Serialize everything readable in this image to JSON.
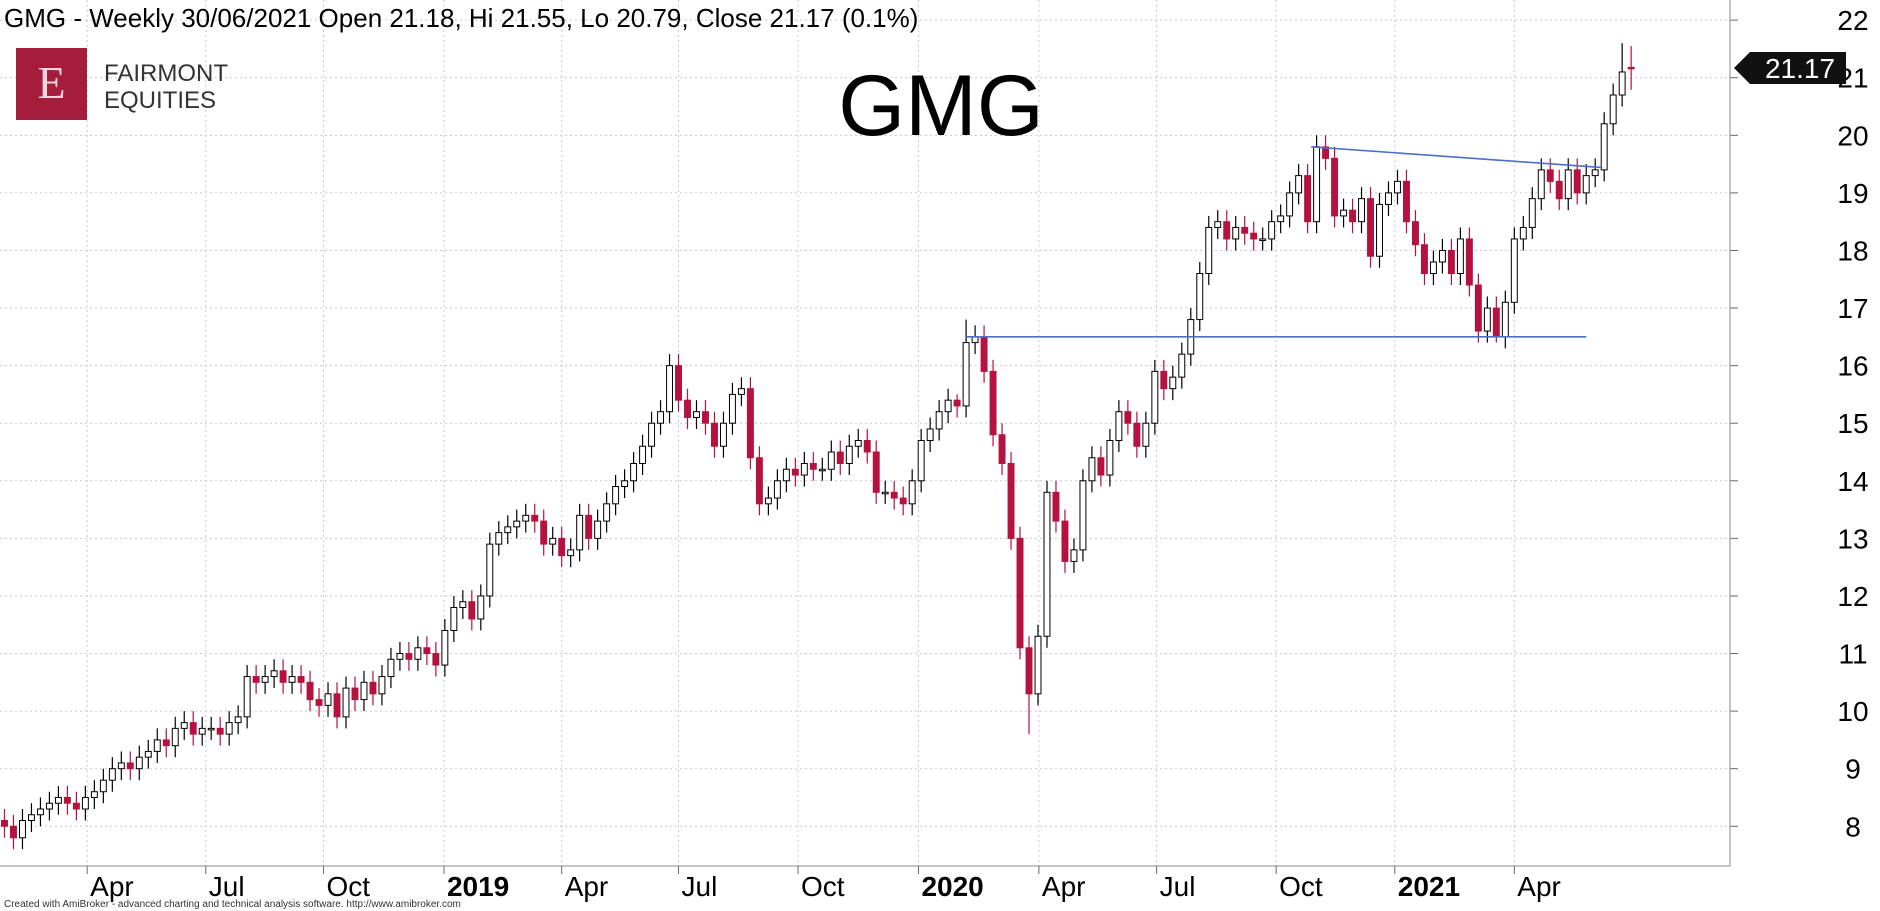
{
  "chart_data": {
    "type": "candlestick",
    "title": "GMG - Weekly 30/06/2021 Open 21.18, Hi 21.55, Lo 20.79, Close 21.17 (0.1%)",
    "watermark": "GMG",
    "open": [
      8.1,
      8.0,
      7.8,
      8.1,
      8.2,
      8.3,
      8.4,
      8.5,
      8.4,
      8.3,
      8.5,
      8.6,
      8.8,
      9.0,
      9.1,
      9.0,
      9.2,
      9.3,
      9.5,
      9.4,
      9.7,
      9.8,
      9.6,
      9.7,
      9.7,
      9.6,
      9.8,
      9.9,
      10.6,
      10.5,
      10.6,
      10.7,
      10.5,
      10.6,
      10.5,
      10.2,
      10.1,
      10.3,
      9.9,
      10.4,
      10.2,
      10.5,
      10.3,
      10.6,
      10.9,
      11.0,
      10.9,
      11.1,
      11.0,
      10.8,
      11.4,
      11.8,
      11.9,
      11.6,
      12.0,
      12.9,
      13.1,
      13.2,
      13.3,
      13.4,
      13.3,
      12.9,
      13.0,
      12.7,
      12.8,
      13.4,
      13.0,
      13.3,
      13.6,
      13.9,
      14.0,
      14.3,
      14.6,
      15.0,
      15.2,
      16.0,
      15.4,
      15.1,
      15.2,
      15.0,
      14.6,
      15.0,
      15.5,
      15.6,
      14.4,
      13.6,
      13.7,
      14.0,
      14.2,
      14.1,
      14.3,
      14.2,
      14.2,
      14.5,
      14.3,
      14.6,
      14.7,
      14.5,
      13.8,
      13.8,
      13.7,
      13.6,
      14.0,
      14.7,
      14.9,
      15.2,
      15.4,
      15.3,
      16.4,
      16.5,
      15.9,
      14.8,
      14.3,
      13.0,
      11.1,
      10.3,
      11.3,
      13.8,
      13.3,
      12.6,
      12.8,
      14.0,
      14.4,
      14.1,
      14.7,
      15.2,
      15.0,
      14.6,
      15.0,
      15.9,
      15.6,
      15.8,
      16.2,
      16.8,
      17.6,
      18.4,
      18.5,
      18.2,
      18.4,
      18.3,
      18.2,
      18.2,
      18.5,
      18.6,
      19.0,
      19.3,
      18.5,
      19.8,
      19.6,
      18.6,
      18.7,
      18.5,
      18.9,
      17.9,
      18.8,
      19.0,
      19.2,
      18.5,
      18.1,
      17.6,
      17.8,
      18.0,
      17.6,
      18.2,
      17.4,
      16.6,
      17.0,
      16.5,
      17.1,
      18.2,
      18.4,
      18.9,
      19.4,
      19.2,
      18.9,
      19.4,
      19.0,
      19.3,
      19.4,
      20.2,
      20.7,
      21.18
    ],
    "high": [
      8.3,
      8.2,
      8.3,
      8.4,
      8.5,
      8.6,
      8.7,
      8.7,
      8.6,
      8.7,
      8.8,
      9.0,
      9.2,
      9.3,
      9.3,
      9.4,
      9.5,
      9.7,
      9.7,
      9.9,
      10.0,
      10.0,
      9.9,
      9.9,
      9.9,
      10.0,
      10.1,
      10.8,
      10.8,
      10.8,
      10.9,
      10.9,
      10.8,
      10.8,
      10.7,
      10.4,
      10.5,
      10.5,
      10.6,
      10.6,
      10.7,
      10.7,
      10.8,
      11.1,
      11.2,
      11.2,
      11.3,
      11.3,
      11.2,
      11.6,
      12.0,
      12.1,
      12.1,
      12.2,
      13.1,
      13.3,
      13.4,
      13.5,
      13.6,
      13.6,
      13.5,
      13.2,
      13.2,
      13.0,
      13.6,
      13.6,
      13.5,
      13.8,
      14.1,
      14.2,
      14.5,
      14.8,
      15.2,
      15.4,
      16.2,
      16.2,
      15.6,
      15.4,
      15.4,
      15.2,
      15.2,
      15.7,
      15.8,
      15.8,
      14.6,
      13.9,
      14.2,
      14.4,
      14.4,
      14.5,
      14.5,
      14.4,
      14.7,
      14.7,
      14.8,
      14.9,
      14.9,
      14.7,
      14.0,
      14.0,
      13.9,
      14.2,
      14.9,
      15.1,
      15.4,
      15.6,
      15.5,
      16.8,
      16.7,
      16.7,
      16.1,
      15.0,
      14.5,
      13.2,
      11.3,
      11.5,
      14.0,
      14.0,
      13.5,
      13.0,
      14.2,
      14.6,
      14.6,
      14.9,
      15.4,
      15.4,
      15.2,
      15.2,
      16.1,
      16.1,
      16.0,
      16.4,
      17.0,
      17.8,
      18.6,
      18.7,
      18.7,
      18.6,
      18.6,
      18.5,
      18.4,
      18.7,
      18.8,
      19.2,
      19.5,
      19.5,
      20.0,
      20.0,
      19.8,
      18.9,
      18.9,
      19.1,
      19.1,
      19.0,
      19.2,
      19.4,
      19.4,
      18.7,
      18.3,
      18.0,
      18.2,
      18.2,
      18.4,
      18.4,
      17.6,
      17.2,
      17.2,
      17.3,
      18.4,
      18.6,
      19.1,
      19.6,
      19.6,
      19.4,
      19.6,
      19.6,
      19.5,
      19.6,
      20.4,
      20.9,
      21.6,
      21.55
    ],
    "low": [
      7.8,
      7.6,
      7.6,
      7.9,
      8.0,
      8.1,
      8.2,
      8.2,
      8.1,
      8.1,
      8.3,
      8.4,
      8.6,
      8.8,
      8.8,
      8.8,
      9.0,
      9.1,
      9.2,
      9.2,
      9.5,
      9.4,
      9.4,
      9.5,
      9.4,
      9.4,
      9.6,
      9.7,
      10.3,
      10.3,
      10.4,
      10.3,
      10.3,
      10.3,
      10.0,
      9.9,
      9.9,
      9.7,
      9.7,
      10.0,
      10.0,
      10.1,
      10.1,
      10.4,
      10.7,
      10.7,
      10.7,
      10.8,
      10.6,
      10.6,
      11.2,
      11.6,
      11.4,
      11.4,
      11.8,
      12.7,
      12.9,
      13.0,
      13.1,
      13.1,
      12.7,
      12.7,
      12.5,
      12.5,
      12.6,
      12.8,
      12.8,
      13.1,
      13.4,
      13.7,
      13.8,
      14.1,
      14.4,
      14.8,
      15.0,
      15.2,
      14.9,
      14.9,
      14.8,
      14.4,
      14.4,
      14.8,
      15.3,
      14.2,
      13.4,
      13.4,
      13.5,
      13.8,
      13.9,
      13.9,
      14.0,
      14.0,
      14.0,
      14.1,
      14.1,
      14.4,
      14.3,
      13.6,
      13.6,
      13.5,
      13.4,
      13.4,
      13.8,
      14.5,
      14.7,
      15.0,
      15.1,
      15.1,
      16.2,
      15.7,
      14.6,
      14.1,
      12.8,
      10.9,
      9.6,
      10.1,
      11.1,
      13.1,
      12.4,
      12.4,
      12.6,
      13.8,
      13.9,
      13.9,
      14.5,
      14.8,
      14.4,
      14.4,
      14.8,
      15.4,
      15.4,
      15.6,
      16.0,
      16.6,
      17.4,
      18.2,
      18.0,
      18.0,
      18.1,
      18.0,
      18.0,
      18.0,
      18.3,
      18.4,
      18.8,
      18.3,
      18.3,
      19.4,
      18.4,
      18.4,
      18.3,
      18.3,
      17.7,
      17.7,
      18.6,
      18.8,
      18.3,
      17.9,
      17.4,
      17.4,
      17.6,
      17.4,
      17.4,
      17.2,
      16.4,
      16.4,
      16.4,
      16.3,
      16.9,
      18.0,
      18.2,
      18.7,
      19.0,
      18.7,
      18.7,
      18.8,
      18.8,
      19.1,
      19.2,
      20.0,
      20.5,
      20.79
    ],
    "close": [
      8.0,
      7.8,
      8.1,
      8.2,
      8.3,
      8.4,
      8.5,
      8.4,
      8.3,
      8.5,
      8.6,
      8.8,
      9.0,
      9.1,
      9.0,
      9.2,
      9.3,
      9.5,
      9.4,
      9.7,
      9.8,
      9.6,
      9.7,
      9.7,
      9.6,
      9.8,
      9.9,
      10.6,
      10.5,
      10.6,
      10.7,
      10.5,
      10.6,
      10.5,
      10.2,
      10.1,
      10.3,
      9.9,
      10.4,
      10.2,
      10.5,
      10.3,
      10.6,
      10.9,
      11.0,
      10.9,
      11.1,
      11.0,
      10.8,
      11.4,
      11.8,
      11.9,
      11.6,
      12.0,
      12.9,
      13.1,
      13.2,
      13.3,
      13.4,
      13.3,
      12.9,
      13.0,
      12.7,
      12.8,
      13.4,
      13.0,
      13.3,
      13.6,
      13.9,
      14.0,
      14.3,
      14.6,
      15.0,
      15.2,
      16.0,
      15.4,
      15.1,
      15.2,
      15.0,
      14.6,
      15.0,
      15.5,
      15.6,
      14.4,
      13.6,
      13.7,
      14.0,
      14.2,
      14.1,
      14.3,
      14.2,
      14.2,
      14.5,
      14.3,
      14.6,
      14.7,
      14.5,
      13.8,
      13.8,
      13.7,
      13.6,
      14.0,
      14.7,
      14.9,
      15.2,
      15.4,
      15.3,
      16.4,
      16.5,
      15.9,
      14.8,
      14.3,
      13.0,
      11.1,
      10.3,
      11.3,
      13.8,
      13.3,
      12.6,
      12.8,
      14.0,
      14.4,
      14.1,
      14.7,
      15.2,
      15.0,
      14.6,
      15.0,
      15.9,
      15.6,
      15.8,
      16.2,
      16.8,
      17.6,
      18.4,
      18.5,
      18.2,
      18.4,
      18.3,
      18.2,
      18.2,
      18.5,
      18.6,
      19.0,
      19.3,
      18.5,
      19.8,
      19.6,
      18.6,
      18.7,
      18.5,
      18.9,
      17.9,
      18.8,
      19.0,
      19.2,
      18.5,
      18.1,
      17.6,
      17.8,
      18.0,
      17.6,
      18.2,
      17.4,
      16.6,
      17.0,
      16.5,
      17.1,
      18.2,
      18.4,
      18.9,
      19.4,
      19.2,
      18.9,
      19.4,
      19.0,
      19.3,
      19.4,
      20.2,
      20.7,
      21.1,
      21.17
    ],
    "up_color": "#ffffff",
    "down_color": "#b5123f",
    "outline_color": "#000000",
    "xlim": [
      -0.5,
      192
    ],
    "xticks": [
      {
        "value": 9.2,
        "label": "Apr"
      },
      {
        "value": 22.4,
        "label": "Jul"
      },
      {
        "value": 35.5,
        "label": "Oct"
      },
      {
        "value": 48.9,
        "label": "2019",
        "bold": true
      },
      {
        "value": 62,
        "label": "Apr"
      },
      {
        "value": 75,
        "label": "Jul"
      },
      {
        "value": 88.3,
        "label": "Oct"
      },
      {
        "value": 101.7,
        "label": "2020",
        "bold": true
      },
      {
        "value": 115.1,
        "label": "Apr"
      },
      {
        "value": 128.2,
        "label": "Jul"
      },
      {
        "value": 141.5,
        "label": "Oct"
      },
      {
        "value": 154.7,
        "label": "2021",
        "bold": true
      },
      {
        "value": 168,
        "label": "Apr"
      }
    ],
    "ylim": [
      7.31,
      22.35
    ],
    "yticks": [
      8,
      9,
      10,
      11,
      12,
      13,
      14,
      15,
      16,
      17,
      18,
      19,
      20,
      21,
      22
    ],
    "grid": true,
    "last_price": 21.17,
    "trendline_color": "#4a6fc4",
    "trendlines": [
      {
        "x": [
          107,
          176
        ],
        "y": [
          16.5,
          16.5
        ]
      },
      {
        "x": [
          145.4,
          177.8
        ],
        "y": [
          19.8,
          19.44
        ]
      }
    ]
  },
  "logo": {
    "letter": "E",
    "line1": "FAIRMONT",
    "line2": "EQUITIES"
  },
  "footer": "Created with AmiBroker - advanced charting and technical analysis software. http://www.amibroker.com"
}
